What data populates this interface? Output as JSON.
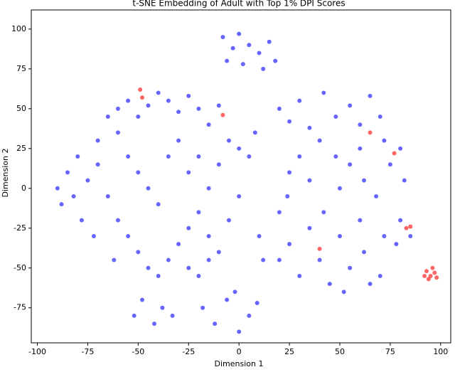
{
  "chart_data": {
    "type": "scatter",
    "title": "t-SNE Embedding of Adult with Top 1% DPI Scores",
    "x_label": "Dimension 1",
    "y_label": "Dimension 2",
    "xlim": [
      -103,
      105
    ],
    "ylim": [
      -97,
      112
    ],
    "xticks": [
      -100,
      -75,
      -50,
      -25,
      0,
      25,
      50,
      75,
      100
    ],
    "yticks": [
      -75,
      -50,
      -25,
      0,
      25,
      50,
      75,
      100
    ],
    "grid": false,
    "series": [
      {
        "color": "#0000ff",
        "x": [
          -90,
          -85,
          -88,
          -80,
          -75,
          -78,
          -70,
          -72,
          -65,
          -60,
          -55,
          -50,
          -45,
          -40,
          -35,
          -30,
          -25,
          -20,
          -15,
          -10,
          -60,
          -55,
          -50,
          -45,
          -40,
          -35,
          -30,
          -25,
          -20,
          -15,
          -10,
          -5,
          0,
          5,
          8,
          -65,
          -60,
          -55,
          -50,
          -45,
          -40,
          -35,
          -30,
          -25,
          -20,
          -15,
          -10,
          -5,
          0,
          -25,
          -20,
          -15,
          -70,
          -82,
          -62,
          -8,
          -3,
          0,
          -6,
          5,
          10,
          15,
          18,
          12,
          2,
          -52,
          -48,
          -42,
          -38,
          -33,
          -18,
          -12,
          -6,
          0,
          5,
          9,
          -2,
          20,
          25,
          30,
          35,
          42,
          48,
          55,
          60,
          65,
          70,
          72,
          60,
          55,
          48,
          40,
          30,
          25,
          35,
          50,
          62,
          75,
          82,
          80,
          68,
          24,
          20,
          20,
          25,
          30,
          35,
          40,
          45,
          50,
          55,
          60,
          62,
          65,
          72,
          78,
          80,
          85,
          70,
          52,
          42,
          10,
          12
        ],
        "values": [
          0,
          10,
          -10,
          20,
          5,
          -20,
          30,
          -30,
          45,
          50,
          55,
          45,
          52,
          60,
          55,
          48,
          58,
          50,
          40,
          52,
          35,
          20,
          10,
          0,
          -10,
          20,
          30,
          10,
          20,
          0,
          15,
          30,
          25,
          20,
          35,
          -5,
          -20,
          -30,
          -40,
          -50,
          -55,
          -45,
          -35,
          -25,
          -15,
          -30,
          -40,
          -20,
          -5,
          -50,
          -55,
          -45,
          15,
          -5,
          -45,
          95,
          88,
          97,
          80,
          90,
          85,
          92,
          80,
          75,
          78,
          -80,
          -70,
          -85,
          -75,
          -80,
          -75,
          -85,
          -70,
          -90,
          -80,
          -72,
          -65,
          50,
          42,
          55,
          38,
          60,
          45,
          52,
          40,
          58,
          45,
          30,
          25,
          15,
          20,
          30,
          20,
          10,
          5,
          0,
          5,
          15,
          5,
          25,
          -5,
          -5,
          -15,
          -45,
          -35,
          -55,
          -25,
          -45,
          -60,
          -30,
          -50,
          -20,
          -40,
          -60,
          -30,
          -35,
          -20,
          -30,
          -55,
          -65,
          -15,
          -30,
          -45
        ]
      },
      {
        "color": "#ff0000",
        "x": [
          93,
          95,
          97,
          94,
          96,
          92,
          98,
          83,
          85,
          -48,
          -49,
          -8,
          65,
          77,
          40
        ],
        "values": [
          -52,
          -55,
          -53,
          -57,
          -50,
          -55,
          -56,
          -25,
          -24,
          57,
          62,
          46,
          35,
          22,
          -38
        ]
      }
    ]
  }
}
